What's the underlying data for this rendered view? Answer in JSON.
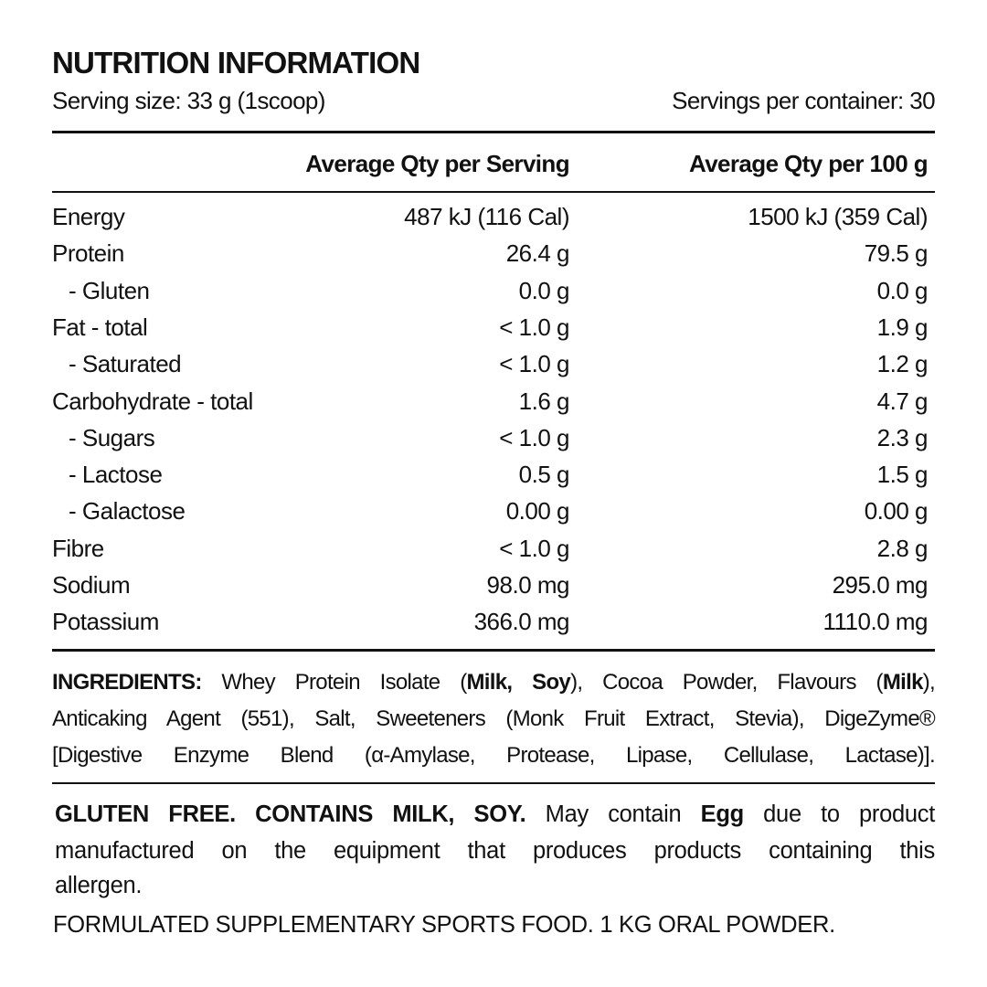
{
  "title": "NUTRITION INFORMATION",
  "serving_size": "Serving size: 33 g (1scoop)",
  "servings_per_container": "Servings per container: 30",
  "columns": [
    "Average Qty per Serving",
    "Average Qty per 100 g"
  ],
  "rows": [
    {
      "name": "Energy",
      "sub": false,
      "per_serving": "487 kJ (116 Cal)",
      "per_100g": "1500 kJ (359 Cal)"
    },
    {
      "name": "Protein",
      "sub": false,
      "per_serving": "26.4 g",
      "per_100g": "79.5 g"
    },
    {
      "name": "- Gluten",
      "sub": true,
      "per_serving": "0.0 g",
      "per_100g": "0.0 g"
    },
    {
      "name": "Fat - total",
      "sub": false,
      "per_serving": "< 1.0 g",
      "per_100g": "1.9 g"
    },
    {
      "name": "- Saturated",
      "sub": true,
      "per_serving": "< 1.0 g",
      "per_100g": "1.2 g"
    },
    {
      "name": "Carbohydrate - total",
      "sub": false,
      "per_serving": "1.6 g",
      "per_100g": "4.7 g"
    },
    {
      "name": "- Sugars",
      "sub": true,
      "per_serving": "< 1.0 g",
      "per_100g": "2.3 g"
    },
    {
      "name": "- Lactose",
      "sub": true,
      "per_serving": "0.5 g",
      "per_100g": "1.5 g"
    },
    {
      "name": "- Galactose",
      "sub": true,
      "per_serving": "0.00 g",
      "per_100g": "0.00 g"
    },
    {
      "name": "Fibre",
      "sub": false,
      "per_serving": "< 1.0 g",
      "per_100g": "2.8 g"
    },
    {
      "name": "Sodium",
      "sub": false,
      "per_serving": "98.0 mg",
      "per_100g": "295.0 mg"
    },
    {
      "name": "Potassium",
      "sub": false,
      "per_serving": "366.0 mg",
      "per_100g": "1110.0 mg"
    }
  ],
  "ingredients_lines": [
    [
      {
        "t": "INGREDIENTS:",
        "b": true
      },
      {
        "t": " Whey Protein Isolate (",
        "b": false
      },
      {
        "t": "Milk, Soy",
        "b": true
      },
      {
        "t": "), Cocoa Powder, Flavours (",
        "b": false
      },
      {
        "t": "Milk",
        "b": true
      },
      {
        "t": "),",
        "b": false
      }
    ],
    [
      {
        "t": "Anticaking Agent (551), Salt, Sweeteners (Monk Fruit Extract, Stevia), DigeZyme®",
        "b": false
      }
    ],
    [
      {
        "t": "[Digestive Enzyme Blend (α-Amylase, Protease, Lipase, Cellulase, Lactase)].",
        "b": false
      }
    ]
  ],
  "allergen_lines": [
    [
      {
        "t": "GLUTEN FREE. CONTAINS MILK, SOY.",
        "b": true
      },
      {
        "t": " May contain ",
        "b": false
      },
      {
        "t": "Egg",
        "b": true
      },
      {
        "t": " due to product",
        "b": false
      }
    ],
    [
      {
        "t": "manufactured on the equipment that produces products containing this",
        "b": false
      }
    ]
  ],
  "allergen_tail": "allergen.",
  "footer": "FORMULATED SUPPLEMENTARY SPORTS FOOD. 1 KG ORAL POWDER."
}
